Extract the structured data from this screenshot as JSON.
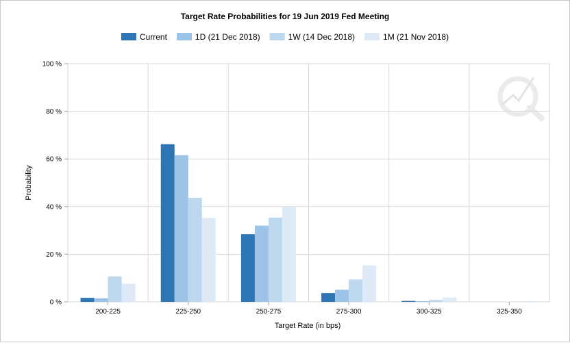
{
  "chart_data": {
    "type": "bar",
    "title": "Target Rate Probabilities for 19 Jun 2019 Fed Meeting",
    "xlabel": "Target Rate (in bps)",
    "ylabel": "Probability",
    "categories": [
      "200-225",
      "225-250",
      "250-275",
      "275-300",
      "300-325",
      "325-350"
    ],
    "y_ticks": [
      "100 %",
      "80 %",
      "60 %",
      "40 %",
      "20 %",
      "0 %"
    ],
    "ylim": [
      0,
      100
    ],
    "grid": true,
    "legend_position": "top-center",
    "series": [
      {
        "name": "Current",
        "color": "#2e75b6",
        "values": [
          1.7,
          66.2,
          28.4,
          3.7,
          0.4,
          0.0
        ]
      },
      {
        "name": "1D (21 Dec 2018)",
        "color": "#9dc3e6",
        "values": [
          1.5,
          61.6,
          32.0,
          5.1,
          0.3,
          0.0
        ]
      },
      {
        "name": "1W (14 Dec 2018)",
        "color": "#bdd7ee",
        "values": [
          10.7,
          43.7,
          35.4,
          9.4,
          0.8,
          0.0
        ]
      },
      {
        "name": "1M (21 Nov 2018)",
        "color": "#deebf7",
        "values": [
          7.6,
          35.2,
          39.8,
          15.3,
          1.8,
          0.3
        ]
      }
    ]
  },
  "watermark": {
    "icon": "q-logo-watermark-icon"
  }
}
